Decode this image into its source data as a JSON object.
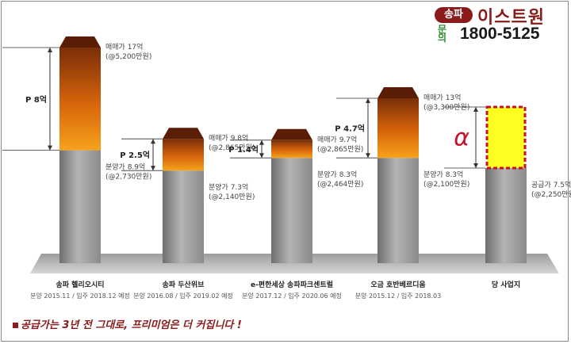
{
  "brand": {
    "badge": "송파",
    "name": "이스트원",
    "phone_label": "문의",
    "phone": "1800-5125"
  },
  "footer_note": "공급가는 3년 전 그대로, 프리미엄은 더 커집니다 !",
  "chart_data": {
    "type": "bar",
    "value_unit": "억",
    "categories": [
      {
        "name": "송파 헬리오시티",
        "sub": "분양 2015.11 / 입주 2018.12 예정"
      },
      {
        "name": "송파 두산위브",
        "sub": "분양 2016.08 / 입주 2019.02 예정"
      },
      {
        "name": "e-편한세상 송파파크센트럴",
        "sub": "분양 2017.12 / 입주 2020.06 예정"
      },
      {
        "name": "오금 호반베르디움",
        "sub": "분양 2015.12 / 입주 2018.03"
      },
      {
        "name": "당 사업지",
        "sub": ""
      }
    ],
    "series": [
      {
        "values": [
          8.9,
          7.3,
          8.3,
          8.3,
          7.5
        ],
        "labels": [
          "분양가 8.9억",
          "분양가 7.3억",
          "분양가 8.3억",
          "분양가 8.3억",
          "공급가 7.5억"
        ],
        "sublabels": [
          "(@2,730만원)",
          "(@2,140만원)",
          "(@2,464만원)",
          "(@2,100만원)",
          "(@2,250만원)"
        ]
      },
      {
        "values": [
          17,
          9.8,
          9.7,
          13,
          null
        ],
        "labels": [
          "매매가 17억",
          "매매가 9.8억",
          "매매가 9.7억",
          "매매가 13억",
          ""
        ],
        "sublabels": [
          "(@5,200만원)",
          "(@2,865만원)",
          "(@2,865만원)",
          "(@3,300만원)",
          ""
        ]
      }
    ],
    "premium_labels": [
      "P 8억",
      "P 2.5억",
      "P 1.4억",
      "P 4.7억",
      "α"
    ],
    "colors": {
      "base": "#9a9a9a",
      "premium": "#e88a10",
      "unknown": "#ffff22",
      "unknown_border": "#c8102e",
      "alpha": "#c8102e"
    }
  }
}
